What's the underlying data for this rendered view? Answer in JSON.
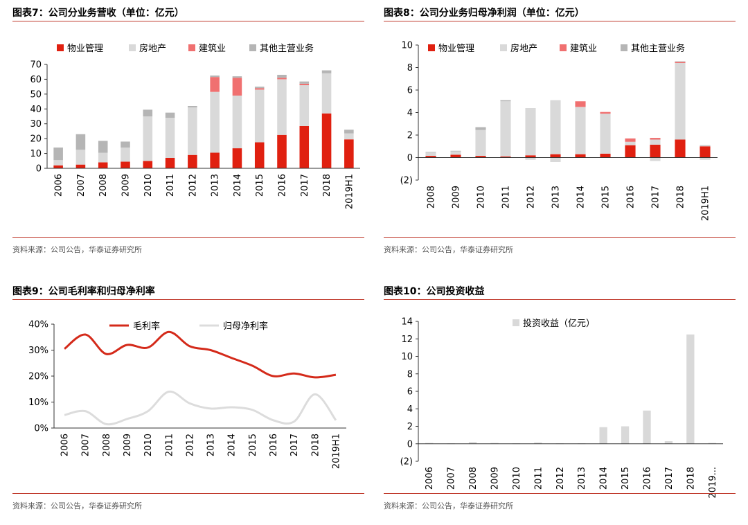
{
  "colors": {
    "property_mgmt": "#e02010",
    "real_estate": "#d9d9d9",
    "construction": "#f07070",
    "other": "#b5b5b5",
    "gross_margin": "#d42a1a",
    "net_margin": "#dcdcdc",
    "invest": "#d9d9d9",
    "rule": "#c0392b"
  },
  "source": "资料来源：公司公告，华泰证券研究所",
  "panels": [
    {
      "title": "图表7：公司分业务营收（单位：亿元）"
    },
    {
      "title": "图表8：公司分业务归母净利润（单位：亿元）"
    },
    {
      "title": "图表9：公司毛利率和归母净利率"
    },
    {
      "title": "图表10：公司投资收益"
    }
  ],
  "chart_data": [
    {
      "type": "bar",
      "stacked": true,
      "title": "图表7：公司分业务营收（单位：亿元）",
      "categories": [
        "2006",
        "2007",
        "2008",
        "2009",
        "2010",
        "2011",
        "2012",
        "2013",
        "2014",
        "2015",
        "2016",
        "2017",
        "2018",
        "2019H1"
      ],
      "ylim": [
        0,
        70
      ],
      "yticks": [
        0,
        10,
        20,
        30,
        40,
        50,
        60,
        70
      ],
      "series": [
        {
          "name": "物业管理",
          "color": "#e02010",
          "values": [
            2,
            2.5,
            4,
            4.5,
            5,
            7,
            9,
            10.5,
            13.5,
            17.5,
            22.5,
            28.5,
            37,
            19.5
          ]
        },
        {
          "name": "房地产",
          "color": "#d9d9d9",
          "values": [
            3.5,
            10,
            6.5,
            9.5,
            30,
            27,
            32,
            41,
            35.5,
            35.5,
            37.5,
            27.5,
            27,
            4
          ]
        },
        {
          "name": "建筑业",
          "color": "#f07070",
          "values": [
            0,
            0,
            0,
            0,
            0,
            0,
            0,
            10,
            12,
            1,
            1,
            1,
            0,
            0
          ]
        },
        {
          "name": "其他主营业务",
          "color": "#b5b5b5",
          "values": [
            8.5,
            10.5,
            8,
            4,
            4.5,
            3.5,
            1,
            1,
            1,
            1,
            2,
            1.5,
            2,
            2.5
          ]
        }
      ]
    },
    {
      "type": "bar",
      "stacked": true,
      "title": "图表8：公司分业务归母净利润（单位：亿元）",
      "categories": [
        "2008",
        "2009",
        "2010",
        "2011",
        "2012",
        "2013",
        "2014",
        "2015",
        "2016",
        "2017",
        "2018",
        "2019H1"
      ],
      "ylim": [
        -2,
        10
      ],
      "yticks": [
        -2,
        0,
        2,
        4,
        6,
        8,
        10
      ],
      "ytick_labels": [
        "(2)",
        "0",
        "2",
        "4",
        "6",
        "8",
        "10"
      ],
      "series": [
        {
          "name": "物业管理",
          "color": "#e02010",
          "values": [
            0.15,
            0.25,
            0.15,
            0.1,
            0.2,
            0.3,
            0.3,
            0.35,
            1.1,
            1.15,
            1.6,
            1.0
          ]
        },
        {
          "name": "房地产",
          "color": "#d9d9d9",
          "values": [
            0.3,
            0.3,
            2.3,
            4.9,
            4.2,
            4.8,
            4.2,
            3.55,
            0.3,
            0.45,
            6.8,
            0.05
          ],
          "negatives": [
            0,
            0,
            0,
            0,
            -0.2,
            -0.4,
            0,
            0,
            0,
            -0.3,
            0,
            -0.2
          ]
        },
        {
          "name": "建筑业",
          "color": "#f07070",
          "values": [
            0,
            0,
            0,
            0,
            0,
            0,
            0.5,
            0.15,
            0.3,
            0.15,
            0.1,
            0
          ]
        },
        {
          "name": "其他主营业务",
          "color": "#b5b5b5",
          "values": [
            0.05,
            0.05,
            0.25,
            0.1,
            0,
            0,
            0,
            0,
            0,
            0,
            0.05,
            0.05
          ]
        }
      ]
    },
    {
      "type": "line",
      "title": "图表9：公司毛利率和归母净利率",
      "categories": [
        "2006",
        "2007",
        "2008",
        "2009",
        "2010",
        "2011",
        "2012",
        "2013",
        "2014",
        "2015",
        "2016",
        "2017",
        "2018",
        "2019H1"
      ],
      "ylim": [
        0,
        40
      ],
      "yticks": [
        0,
        10,
        20,
        30,
        40
      ],
      "ytick_labels": [
        "0%",
        "10%",
        "20%",
        "30%",
        "40%"
      ],
      "series": [
        {
          "name": "毛利率",
          "color": "#d42a1a",
          "values": [
            30.5,
            36,
            28.5,
            32,
            31,
            37,
            31.5,
            30,
            27,
            24,
            20,
            21,
            19.5,
            20.5
          ]
        },
        {
          "name": "归母净利率",
          "color": "#dcdcdc",
          "values": [
            5,
            6.5,
            1.5,
            3.5,
            6.5,
            14,
            9.5,
            7.5,
            8,
            7,
            3,
            2.5,
            13,
            3
          ]
        }
      ]
    },
    {
      "type": "bar",
      "title": "图表10：公司投资收益",
      "categories": [
        "2006",
        "2007",
        "2008",
        "2009",
        "2010",
        "2011",
        "2012",
        "2013",
        "2014",
        "2015",
        "2016",
        "2017",
        "2018",
        "2019..."
      ],
      "ylim": [
        -2,
        14
      ],
      "yticks": [
        -2,
        0,
        2,
        4,
        6,
        8,
        10,
        12,
        14
      ],
      "ytick_labels": [
        "(2)",
        "0",
        "2",
        "4",
        "6",
        "8",
        "10",
        "12",
        "14"
      ],
      "series": [
        {
          "name": "投资收益（亿元）",
          "color": "#d9d9d9",
          "values": [
            0.1,
            0.05,
            0.2,
            0.1,
            0.05,
            0.15,
            0.05,
            0.05,
            1.9,
            2.0,
            3.8,
            0.3,
            12.5,
            0.1
          ]
        }
      ]
    }
  ]
}
